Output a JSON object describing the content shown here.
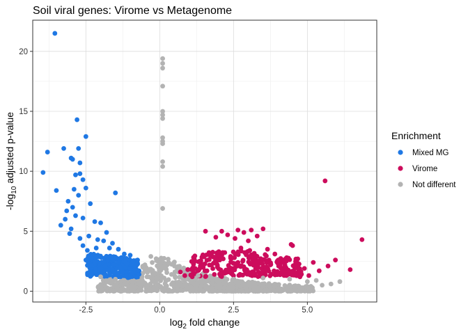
{
  "chart_data": {
    "type": "scatter",
    "title": "Soil viral genes: Virome vs Metagenome",
    "xlabel": {
      "base": "log",
      "sub": "2",
      "rest": " fold change"
    },
    "ylabel": {
      "pre": "-log",
      "sub": "10",
      "rest": " adjusted p-value"
    },
    "xlim": [
      -4.3,
      7.35
    ],
    "ylim": [
      -0.9,
      22.6
    ],
    "x_ticks": [
      -2.5,
      0,
      2.5,
      5
    ],
    "x_tick_labels": [
      "-2.5",
      "0.0",
      "2.5",
      "5.0"
    ],
    "y_ticks": [
      0,
      5,
      10,
      15,
      20
    ],
    "y_tick_labels": [
      "0",
      "5",
      "10",
      "15",
      "20"
    ],
    "grid": true,
    "legend": {
      "title": "Enrichment",
      "position": "right"
    },
    "series": [
      {
        "name": "Mixed MG",
        "color": "#1f78e4",
        "points": [
          [
            -3.55,
            21.5
          ],
          [
            -2.8,
            14.3
          ],
          [
            -2.5,
            12.9
          ],
          [
            -3.8,
            11.6
          ],
          [
            -3.25,
            11.9
          ],
          [
            -2.75,
            11.9
          ],
          [
            -3.0,
            11.1
          ],
          [
            -2.95,
            11.0
          ],
          [
            -2.7,
            10.7
          ],
          [
            -3.95,
            9.9
          ],
          [
            -2.85,
            9.7
          ],
          [
            -2.7,
            9.8
          ],
          [
            -2.6,
            9.3
          ],
          [
            -3.5,
            8.4
          ],
          [
            -1.5,
            8.2
          ],
          [
            -2.5,
            8.6
          ],
          [
            -2.9,
            8.5
          ],
          [
            -2.75,
            8.0
          ],
          [
            -3.1,
            7.5
          ],
          [
            -2.35,
            7.3
          ],
          [
            -3.15,
            6.7
          ],
          [
            -2.85,
            6.3
          ],
          [
            -2.6,
            6.1
          ],
          [
            -3.35,
            5.5
          ],
          [
            -3.0,
            5.2
          ],
          [
            -2.2,
            5.8
          ],
          [
            -2.0,
            5.7
          ],
          [
            -1.8,
            4.9
          ],
          [
            -2.4,
            4.6
          ],
          [
            -1.9,
            4.2
          ],
          [
            -2.1,
            4.3
          ],
          [
            -1.6,
            4.0
          ],
          [
            -1.7,
            3.6
          ],
          [
            -2.7,
            4.4
          ],
          [
            -2.45,
            3.4
          ],
          [
            -1.4,
            3.5
          ],
          [
            -1.2,
            3.1
          ],
          [
            -2.2,
            3.0
          ],
          [
            -1.0,
            3.0
          ],
          [
            -1.15,
            2.6
          ],
          [
            -2.5,
            2.6
          ],
          [
            -0.9,
            2.5
          ],
          [
            -0.75,
            2.6
          ],
          [
            -2.05,
            2.3
          ],
          [
            -1.55,
            2.2
          ],
          [
            -1.35,
            2.0
          ],
          [
            -1.85,
            2.1
          ],
          [
            -1.0,
            1.9
          ],
          [
            -0.85,
            1.8
          ],
          [
            -0.7,
            1.7
          ],
          [
            -1.6,
            1.8
          ],
          [
            -1.25,
            1.6
          ],
          [
            -0.95,
            1.5
          ],
          [
            -0.7,
            1.4
          ],
          [
            -1.45,
            1.4
          ],
          [
            -2.3,
            2.8
          ],
          [
            -2.6,
            3.8
          ],
          [
            -3.05,
            4.8
          ],
          [
            -2.95,
            7.0
          ],
          [
            -3.2,
            6.0
          ],
          [
            -1.1,
            2.3
          ],
          [
            -0.8,
            2.1
          ],
          [
            -1.75,
            2.6
          ],
          [
            -2.15,
            3.6
          ],
          [
            -1.3,
            2.8
          ]
        ]
      },
      {
        "name": "Virome",
        "color": "#cc0c5c",
        "points": [
          [
            5.6,
            9.2
          ],
          [
            6.85,
            4.3
          ],
          [
            1.55,
            5.0
          ],
          [
            2.1,
            5.0
          ],
          [
            2.65,
            5.1
          ],
          [
            3.1,
            5.1
          ],
          [
            3.5,
            5.2
          ],
          [
            2.85,
            4.9
          ],
          [
            2.3,
            4.7
          ],
          [
            3.3,
            4.6
          ],
          [
            1.9,
            4.5
          ],
          [
            2.55,
            4.4
          ],
          [
            3.0,
            4.2
          ],
          [
            4.45,
            3.9
          ],
          [
            4.5,
            3.8
          ],
          [
            2.75,
            3.6
          ],
          [
            3.65,
            3.5
          ],
          [
            2.0,
            3.3
          ],
          [
            1.7,
            3.0
          ],
          [
            3.9,
            3.1
          ],
          [
            2.4,
            2.9
          ],
          [
            3.2,
            2.8
          ],
          [
            4.2,
            2.6
          ],
          [
            5.95,
            2.6
          ],
          [
            5.2,
            2.4
          ],
          [
            4.6,
            2.3
          ],
          [
            3.75,
            2.2
          ],
          [
            1.4,
            2.1
          ],
          [
            1.2,
            1.9
          ],
          [
            0.95,
            1.8
          ],
          [
            0.7,
            1.6
          ],
          [
            4.9,
            1.9
          ],
          [
            5.4,
            1.7
          ],
          [
            6.45,
            1.8
          ],
          [
            5.7,
            2.1
          ],
          [
            4.0,
            1.6
          ],
          [
            3.45,
            1.5
          ],
          [
            2.2,
            1.5
          ],
          [
            1.85,
            1.4
          ],
          [
            2.95,
            1.7
          ],
          [
            2.5,
            1.9
          ],
          [
            1.6,
            1.7
          ],
          [
            3.6,
            1.9
          ],
          [
            4.35,
            1.4
          ],
          [
            5.05,
            1.3
          ],
          [
            1.05,
            1.35
          ],
          [
            2.65,
            2.4
          ],
          [
            1.95,
            2.2
          ],
          [
            3.35,
            2.5
          ],
          [
            2.15,
            2.7
          ],
          [
            1.35,
            2.5
          ],
          [
            3.05,
            3.4
          ],
          [
            2.6,
            3.1
          ],
          [
            0.85,
            1.3
          ],
          [
            4.75,
            1.2
          ]
        ]
      },
      {
        "name": "Not different",
        "color": "#b3b3b3",
        "points": [
          [
            0.1,
            19.4
          ],
          [
            0.1,
            19.0
          ],
          [
            0.1,
            18.6
          ],
          [
            0.1,
            17.1
          ],
          [
            0.1,
            15.0
          ],
          [
            0.1,
            14.7
          ],
          [
            0.1,
            14.4
          ],
          [
            0.1,
            12.8
          ],
          [
            0.1,
            12.5
          ],
          [
            0.1,
            12.3
          ],
          [
            0.1,
            10.8
          ],
          [
            0.1,
            10.4
          ],
          [
            0.1,
            6.9
          ],
          [
            -0.3,
            2.9
          ],
          [
            -0.1,
            2.6
          ],
          [
            0.3,
            2.4
          ],
          [
            -0.5,
            2.2
          ],
          [
            0.5,
            2.1
          ],
          [
            0.2,
            2.0
          ],
          [
            -0.3,
            1.8
          ],
          [
            0.6,
            1.7
          ],
          [
            -0.6,
            1.2
          ],
          [
            0.9,
            1.2
          ],
          [
            1.3,
            1.3
          ],
          [
            5.3,
            0.9
          ],
          [
            6.1,
            0.8
          ],
          [
            5.8,
            0.6
          ],
          [
            5.5,
            0.5
          ],
          [
            -1.5,
            1.0
          ],
          [
            -1.2,
            0.9
          ],
          [
            -0.9,
            0.8
          ],
          [
            -2.0,
            1.2
          ],
          [
            2.5,
            1.0
          ],
          [
            3.5,
            1.1
          ],
          [
            4.4,
            1.0
          ],
          [
            5.0,
            0.8
          ],
          [
            1.8,
            0.9
          ],
          [
            0.4,
            1.4
          ],
          [
            -0.15,
            1.5
          ],
          [
            0.15,
            1.1
          ]
        ]
      }
    ],
    "dense_bands": {
      "Mixed MG": {
        "x": [
          -2.45,
          -0.72
        ],
        "y_base": [
          1.25,
          1.05
        ],
        "y_top": [
          3.2,
          2.6
        ]
      },
      "Virome": {
        "x": [
          1.05,
          4.8
        ],
        "y_base": [
          1.1,
          1.3
        ],
        "y_top": [
          3.0,
          2.6
        ]
      },
      "Not different": {
        "x": [
          -2.1,
          5.2
        ],
        "y_base": [
          0,
          0
        ],
        "y_top_peak": 2.8
      }
    }
  }
}
